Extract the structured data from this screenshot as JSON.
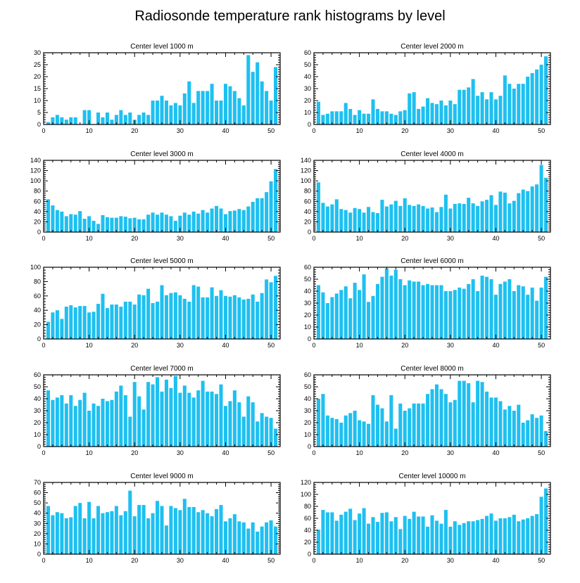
{
  "title": "Radiosonde temperature rank histograms by level",
  "colors": {
    "bar": "#1ec0f0",
    "axis": "#000000"
  },
  "chart_data": [
    {
      "type": "bar",
      "title": "Center level 1000 m",
      "xlim": [
        0,
        52
      ],
      "ylim": [
        0,
        30
      ],
      "xticks": [
        0,
        10,
        20,
        30,
        40,
        50
      ],
      "yticks": [
        0,
        5,
        10,
        15,
        20,
        25,
        30
      ],
      "x": [
        1,
        2,
        3,
        4,
        5,
        6,
        7,
        8,
        9,
        10,
        11,
        12,
        13,
        14,
        15,
        16,
        17,
        18,
        19,
        20,
        21,
        22,
        23,
        24,
        25,
        26,
        27,
        28,
        29,
        30,
        31,
        32,
        33,
        34,
        35,
        36,
        37,
        38,
        39,
        40,
        41,
        42,
        43,
        44,
        45,
        46,
        47,
        48,
        49,
        50,
        51
      ],
      "values": [
        1,
        3,
        4,
        3,
        2,
        3,
        3,
        0,
        6,
        6,
        0,
        5,
        3,
        5,
        2,
        4,
        6,
        4,
        5,
        2,
        4,
        5,
        4,
        10,
        10,
        12,
        10,
        8,
        9,
        8,
        13,
        18,
        9,
        14,
        14,
        14,
        17,
        10,
        10,
        17,
        16,
        14,
        11,
        8,
        29,
        22,
        26,
        18,
        14,
        10,
        24
      ]
    },
    {
      "type": "bar",
      "title": "Center level 2000 m",
      "xlim": [
        0,
        52
      ],
      "ylim": [
        0,
        60
      ],
      "xticks": [
        0,
        10,
        20,
        30,
        40,
        50
      ],
      "yticks": [
        0,
        10,
        20,
        30,
        40,
        50,
        60
      ],
      "x": [
        1,
        2,
        3,
        4,
        5,
        6,
        7,
        8,
        9,
        10,
        11,
        12,
        13,
        14,
        15,
        16,
        17,
        18,
        19,
        20,
        21,
        22,
        23,
        24,
        25,
        26,
        27,
        28,
        29,
        30,
        31,
        32,
        33,
        34,
        35,
        36,
        37,
        38,
        39,
        40,
        41,
        42,
        43,
        44,
        45,
        46,
        47,
        48,
        49,
        50,
        51
      ],
      "values": [
        19,
        8,
        9,
        11,
        11,
        11,
        18,
        13,
        8,
        12,
        9,
        9,
        21,
        13,
        11,
        11,
        9,
        8,
        11,
        12,
        26,
        27,
        13,
        15,
        22,
        18,
        17,
        20,
        16,
        20,
        17,
        29,
        29,
        31,
        38,
        24,
        27,
        21,
        27,
        21,
        24,
        41,
        34,
        30,
        34,
        34,
        40,
        43,
        46,
        50,
        57
      ]
    },
    {
      "type": "bar",
      "title": "Center level 3000 m",
      "xlim": [
        0,
        52
      ],
      "ylim": [
        0,
        140
      ],
      "xticks": [
        0,
        10,
        20,
        30,
        40,
        50
      ],
      "yticks": [
        0,
        20,
        40,
        60,
        80,
        100,
        120,
        140
      ],
      "x": [
        1,
        2,
        3,
        4,
        5,
        6,
        7,
        8,
        9,
        10,
        11,
        12,
        13,
        14,
        15,
        16,
        17,
        18,
        19,
        20,
        21,
        22,
        23,
        24,
        25,
        26,
        27,
        28,
        29,
        30,
        31,
        32,
        33,
        34,
        35,
        36,
        37,
        38,
        39,
        40,
        41,
        42,
        43,
        44,
        45,
        46,
        47,
        48,
        49,
        50,
        51
      ],
      "values": [
        64,
        52,
        43,
        40,
        31,
        35,
        34,
        41,
        26,
        31,
        22,
        16,
        33,
        29,
        28,
        28,
        31,
        30,
        27,
        28,
        25,
        25,
        34,
        38,
        34,
        38,
        34,
        31,
        22,
        32,
        38,
        34,
        40,
        36,
        43,
        38,
        46,
        51,
        46,
        35,
        41,
        42,
        45,
        43,
        50,
        59,
        66,
        66,
        78,
        99,
        123
      ]
    },
    {
      "type": "bar",
      "title": "Center level 4000 m",
      "xlim": [
        0,
        52
      ],
      "ylim": [
        0,
        140
      ],
      "xticks": [
        0,
        10,
        20,
        30,
        40,
        50
      ],
      "yticks": [
        0,
        20,
        40,
        60,
        80,
        100,
        120,
        140
      ],
      "x": [
        1,
        2,
        3,
        4,
        5,
        6,
        7,
        8,
        9,
        10,
        11,
        12,
        13,
        14,
        15,
        16,
        17,
        18,
        19,
        20,
        21,
        22,
        23,
        24,
        25,
        26,
        27,
        28,
        29,
        30,
        31,
        32,
        33,
        34,
        35,
        36,
        37,
        38,
        39,
        40,
        41,
        42,
        43,
        44,
        45,
        46,
        47,
        48,
        49,
        50,
        51
      ],
      "values": [
        97,
        57,
        50,
        54,
        64,
        45,
        43,
        38,
        47,
        45,
        38,
        49,
        39,
        37,
        63,
        50,
        54,
        61,
        51,
        66,
        53,
        51,
        54,
        51,
        46,
        48,
        39,
        49,
        73,
        46,
        55,
        56,
        55,
        67,
        56,
        51,
        60,
        63,
        72,
        53,
        79,
        77,
        56,
        61,
        76,
        83,
        80,
        89,
        93,
        131,
        106
      ]
    },
    {
      "type": "bar",
      "title": "Center level 5000 m",
      "xlim": [
        0,
        52
      ],
      "ylim": [
        0,
        100
      ],
      "xticks": [
        0,
        10,
        20,
        30,
        40,
        50
      ],
      "yticks": [
        0,
        20,
        40,
        60,
        80,
        100
      ],
      "x": [
        1,
        2,
        3,
        4,
        5,
        6,
        7,
        8,
        9,
        10,
        11,
        12,
        13,
        14,
        15,
        16,
        17,
        18,
        19,
        20,
        21,
        22,
        23,
        24,
        25,
        26,
        27,
        28,
        29,
        30,
        31,
        32,
        33,
        34,
        35,
        36,
        37,
        38,
        39,
        40,
        41,
        42,
        43,
        44,
        45,
        46,
        47,
        48,
        49,
        50,
        51
      ],
      "values": [
        24,
        37,
        40,
        28,
        45,
        47,
        44,
        46,
        46,
        37,
        38,
        49,
        63,
        43,
        48,
        48,
        45,
        52,
        52,
        48,
        62,
        61,
        70,
        50,
        52,
        75,
        61,
        64,
        65,
        61,
        56,
        52,
        75,
        73,
        58,
        58,
        72,
        60,
        68,
        60,
        59,
        61,
        58,
        55,
        56,
        62,
        52,
        64,
        83,
        79,
        88
      ]
    },
    {
      "type": "bar",
      "title": "Center level 6000 m",
      "xlim": [
        0,
        52
      ],
      "ylim": [
        0,
        60
      ],
      "xticks": [
        0,
        10,
        20,
        30,
        40,
        50
      ],
      "yticks": [
        0,
        10,
        20,
        30,
        40,
        50,
        60
      ],
      "x": [
        1,
        2,
        3,
        4,
        5,
        6,
        7,
        8,
        9,
        10,
        11,
        12,
        13,
        14,
        15,
        16,
        17,
        18,
        19,
        20,
        21,
        22,
        23,
        24,
        25,
        26,
        27,
        28,
        29,
        30,
        31,
        32,
        33,
        34,
        35,
        36,
        37,
        38,
        39,
        40,
        41,
        42,
        43,
        44,
        45,
        46,
        47,
        48,
        49,
        50,
        51
      ],
      "values": [
        45,
        39,
        30,
        35,
        38,
        41,
        44,
        34,
        47,
        41,
        54,
        31,
        36,
        46,
        52,
        59,
        53,
        58,
        50,
        45,
        49,
        48,
        48,
        45,
        46,
        45,
        45,
        45,
        40,
        40,
        41,
        43,
        42,
        46,
        50,
        40,
        53,
        52,
        50,
        37,
        46,
        48,
        50,
        40,
        45,
        44,
        37,
        43,
        32,
        43,
        52
      ]
    },
    {
      "type": "bar",
      "title": "Center level 7000 m",
      "xlim": [
        0,
        52
      ],
      "ylim": [
        0,
        60
      ],
      "xticks": [
        0,
        10,
        20,
        30,
        40,
        50
      ],
      "yticks": [
        0,
        10,
        20,
        30,
        40,
        50,
        60
      ],
      "x": [
        1,
        2,
        3,
        4,
        5,
        6,
        7,
        8,
        9,
        10,
        11,
        12,
        13,
        14,
        15,
        16,
        17,
        18,
        19,
        20,
        21,
        22,
        23,
        24,
        25,
        26,
        27,
        28,
        29,
        30,
        31,
        32,
        33,
        34,
        35,
        36,
        37,
        38,
        39,
        40,
        41,
        42,
        43,
        44,
        45,
        46,
        47,
        48,
        49,
        50,
        51
      ],
      "values": [
        47,
        39,
        41,
        43,
        36,
        43,
        34,
        39,
        45,
        30,
        36,
        34,
        40,
        38,
        39,
        46,
        51,
        43,
        25,
        54,
        42,
        31,
        54,
        52,
        58,
        46,
        56,
        49,
        59,
        45,
        51,
        45,
        41,
        47,
        55,
        46,
        46,
        44,
        52,
        34,
        38,
        47,
        37,
        25,
        42,
        37,
        21,
        28,
        25,
        24,
        15
      ]
    },
    {
      "type": "bar",
      "title": "Center level 8000 m",
      "xlim": [
        0,
        52
      ],
      "ylim": [
        0,
        60
      ],
      "xticks": [
        0,
        10,
        20,
        30,
        40,
        50
      ],
      "yticks": [
        0,
        10,
        20,
        30,
        40,
        50,
        60
      ],
      "x": [
        1,
        2,
        3,
        4,
        5,
        6,
        7,
        8,
        9,
        10,
        11,
        12,
        13,
        14,
        15,
        16,
        17,
        18,
        19,
        20,
        21,
        22,
        23,
        24,
        25,
        26,
        27,
        28,
        29,
        30,
        31,
        32,
        33,
        34,
        35,
        36,
        37,
        38,
        39,
        40,
        41,
        42,
        43,
        44,
        45,
        46,
        47,
        48,
        49,
        50,
        51
      ],
      "values": [
        40,
        44,
        26,
        24,
        23,
        20,
        26,
        28,
        30,
        22,
        21,
        19,
        43,
        35,
        32,
        21,
        43,
        15,
        36,
        30,
        32,
        36,
        36,
        36,
        44,
        48,
        52,
        48,
        44,
        37,
        39,
        55,
        55,
        53,
        37,
        55,
        54,
        46,
        41,
        41,
        38,
        31,
        34,
        30,
        35,
        20,
        22,
        27,
        24,
        26,
        13
      ]
    },
    {
      "type": "bar",
      "title": "Center level 9000 m",
      "xlim": [
        0,
        52
      ],
      "ylim": [
        0,
        70
      ],
      "xticks": [
        0,
        10,
        20,
        30,
        40,
        50
      ],
      "yticks": [
        0,
        10,
        20,
        30,
        40,
        50,
        60,
        70
      ],
      "x": [
        1,
        2,
        3,
        4,
        5,
        6,
        7,
        8,
        9,
        10,
        11,
        12,
        13,
        14,
        15,
        16,
        17,
        18,
        19,
        20,
        21,
        22,
        23,
        24,
        25,
        26,
        27,
        28,
        29,
        30,
        31,
        32,
        33,
        34,
        35,
        36,
        37,
        38,
        39,
        40,
        41,
        42,
        43,
        44,
        45,
        46,
        47,
        48,
        49,
        50,
        51
      ],
      "values": [
        47,
        38,
        41,
        40,
        35,
        36,
        47,
        50,
        35,
        51,
        35,
        47,
        40,
        41,
        42,
        47,
        38,
        42,
        62,
        37,
        48,
        48,
        35,
        40,
        52,
        47,
        28,
        47,
        45,
        43,
        54,
        46,
        46,
        41,
        43,
        40,
        37,
        44,
        48,
        32,
        35,
        39,
        32,
        31,
        25,
        31,
        22,
        27,
        31,
        33,
        27
      ]
    },
    {
      "type": "bar",
      "title": "Center level 10000 m",
      "xlim": [
        0,
        52
      ],
      "ylim": [
        0,
        120
      ],
      "xticks": [
        0,
        10,
        20,
        30,
        40,
        50
      ],
      "yticks": [
        0,
        20,
        40,
        60,
        80,
        100,
        120
      ],
      "x": [
        1,
        2,
        3,
        4,
        5,
        6,
        7,
        8,
        9,
        10,
        11,
        12,
        13,
        14,
        15,
        16,
        17,
        18,
        19,
        20,
        21,
        22,
        23,
        24,
        25,
        26,
        27,
        28,
        29,
        30,
        31,
        32,
        33,
        34,
        35,
        36,
        37,
        38,
        39,
        40,
        41,
        42,
        43,
        44,
        45,
        46,
        47,
        48,
        49,
        50,
        51
      ],
      "values": [
        41,
        74,
        70,
        70,
        56,
        66,
        71,
        76,
        57,
        68,
        77,
        51,
        62,
        54,
        69,
        70,
        55,
        62,
        42,
        64,
        59,
        71,
        63,
        63,
        46,
        65,
        56,
        51,
        74,
        46,
        55,
        49,
        52,
        55,
        55,
        57,
        59,
        64,
        68,
        56,
        60,
        60,
        62,
        66,
        55,
        58,
        60,
        64,
        67,
        96,
        110
      ]
    }
  ]
}
